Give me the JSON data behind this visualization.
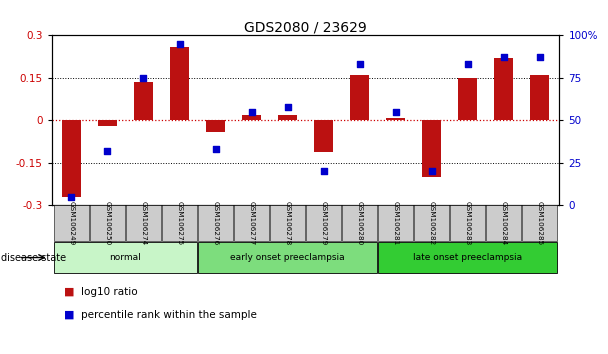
{
  "title": "GDS2080 / 23629",
  "samples": [
    "GSM106249",
    "GSM106250",
    "GSM106274",
    "GSM106275",
    "GSM106276",
    "GSM106277",
    "GSM106278",
    "GSM106279",
    "GSM106280",
    "GSM106281",
    "GSM106282",
    "GSM106283",
    "GSM106284",
    "GSM106285"
  ],
  "log10_ratio": [
    -0.27,
    -0.02,
    0.135,
    0.26,
    -0.04,
    0.02,
    0.02,
    -0.11,
    0.16,
    0.01,
    -0.2,
    0.15,
    0.22,
    0.16
  ],
  "percentile_rank": [
    5,
    32,
    75,
    95,
    33,
    55,
    58,
    20,
    83,
    55,
    20,
    83,
    87,
    87
  ],
  "groups": [
    {
      "label": "normal",
      "start": 0,
      "end": 4,
      "color": "#c8f5c8"
    },
    {
      "label": "early onset preeclampsia",
      "start": 4,
      "end": 9,
      "color": "#7ddd7d"
    },
    {
      "label": "late onset preeclampsia",
      "start": 9,
      "end": 14,
      "color": "#33cc33"
    }
  ],
  "bar_color": "#bb1111",
  "scatter_color": "#0000cc",
  "left_ylim": [
    -0.3,
    0.3
  ],
  "right_ylim": [
    0,
    100
  ],
  "left_yticks": [
    -0.3,
    -0.15,
    0,
    0.15,
    0.3
  ],
  "right_yticks": [
    0,
    25,
    50,
    75,
    100
  ],
  "right_yticklabels": [
    "0",
    "25",
    "50",
    "75",
    "100%"
  ],
  "hlines_dotted": [
    0.15,
    -0.15
  ],
  "hline_zero_color": "#cc0000",
  "background_color": "#ffffff",
  "tick_area_color": "#cccccc"
}
